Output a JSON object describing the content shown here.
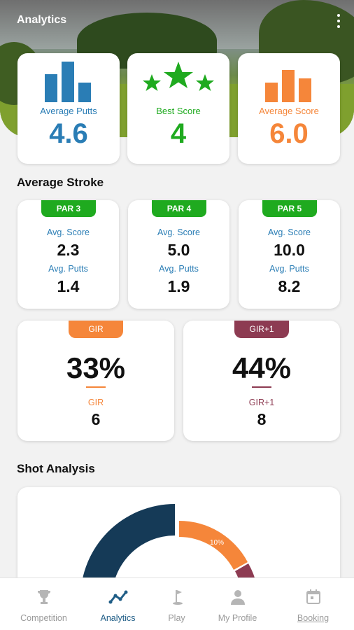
{
  "header": {
    "title": "Analytics",
    "menu_icon": "more-vert-icon"
  },
  "colors": {
    "blue": "#2a7db5",
    "green": "#1faa1f",
    "orange": "#f5863a",
    "maroon": "#8d3b52",
    "navy": "#153a57"
  },
  "stats": [
    {
      "label": "Average Putts",
      "value": "4.6",
      "icon": "bar-chart-icon",
      "color": "#2a7db5"
    },
    {
      "label": "Best Score",
      "value": "4",
      "icon": "stars-icon",
      "color": "#1faa1f"
    },
    {
      "label": "Average Score",
      "value": "6.0",
      "icon": "bar-chart-icon",
      "color": "#f5863a"
    }
  ],
  "average_stroke": {
    "title": "Average Stroke",
    "pars": [
      {
        "tag": "PAR 3",
        "score_label": "Avg. Score",
        "score": "2.3",
        "putts_label": "Avg. Putts",
        "putts": "1.4"
      },
      {
        "tag": "PAR 4",
        "score_label": "Avg. Score",
        "score": "5.0",
        "putts_label": "Avg. Putts",
        "putts": "1.9"
      },
      {
        "tag": "PAR 5",
        "score_label": "Avg. Score",
        "score": "10.0",
        "putts_label": "Avg. Putts",
        "putts": "8.2"
      }
    ]
  },
  "gir": [
    {
      "tag": "GIR",
      "percent": "33%",
      "label": "GIR",
      "count": "6",
      "color": "#f5863a"
    },
    {
      "tag": "GIR+1",
      "percent": "44%",
      "label": "GIR+1",
      "count": "8",
      "color": "#8d3b52"
    }
  ],
  "shot_analysis": {
    "title": "Shot Analysis",
    "slice_label": "10%"
  },
  "chart_data": {
    "type": "pie",
    "title": "",
    "slices": [
      {
        "label": "10%",
        "value": 10,
        "color": "#f5863a"
      }
    ]
  },
  "nav": [
    {
      "label": "Competition",
      "icon": "trophy-icon",
      "active": false
    },
    {
      "label": "Analytics",
      "icon": "trend-line-icon",
      "active": true
    },
    {
      "label": "Play",
      "icon": "golf-flag-icon",
      "active": false
    },
    {
      "label": "My Profile",
      "icon": "person-icon",
      "active": false
    },
    {
      "label": "Booking",
      "icon": "calendar-icon",
      "active": false
    }
  ]
}
